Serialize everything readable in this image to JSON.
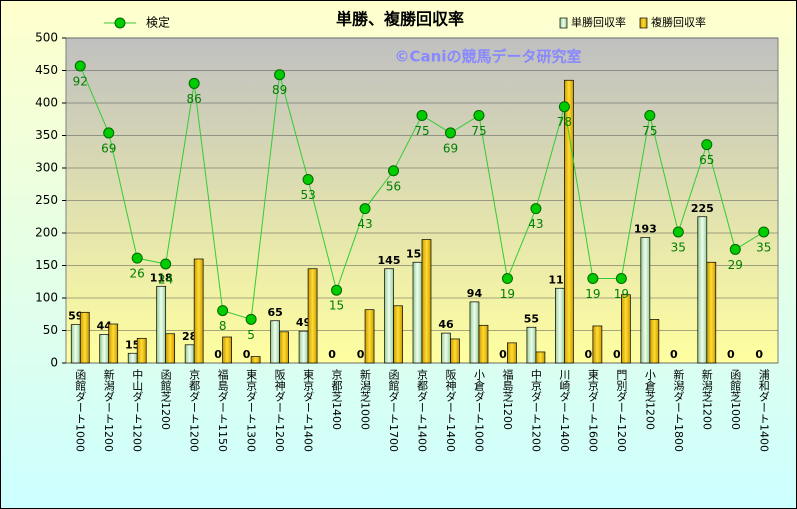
{
  "chart_data": {
    "type": "bar_line",
    "title": "単勝、複勝回収率",
    "annotation": "©Caniの競馬データ研究室",
    "categories": [
      "函館ダート1000",
      "新潟ダート1200",
      "中山ダート1200",
      "函館芝1200",
      "京都ダート1200",
      "福島ダート1150",
      "東京ダート1300",
      "阪神ダート1200",
      "東京ダート1400",
      "京都芝1400",
      "新潟芝1000",
      "函館ダート1700",
      "京都ダート1400",
      "阪神ダート1400",
      "小倉ダート1000",
      "福島芝1200",
      "中京ダート1200",
      "川崎ダート1400",
      "東京ダート1600",
      "門別ダート1200",
      "小倉芝1200",
      "新潟ダート1800",
      "新潟芝1200",
      "函館芝1000",
      "浦和ダート1400"
    ],
    "series": [
      {
        "name": "単勝回収率",
        "type": "bar",
        "color": "#ccffcc",
        "labels": true,
        "values": [
          59,
          44,
          15,
          118,
          28,
          0,
          0,
          65,
          49,
          0,
          0,
          145,
          155,
          46,
          94,
          0,
          55,
          115,
          0,
          0,
          193,
          0,
          225,
          0,
          0
        ]
      },
      {
        "name": "複勝回収率",
        "type": "bar",
        "color": "#ffcc00",
        "labels": false,
        "values": [
          78,
          60,
          38,
          45,
          160,
          40,
          10,
          48,
          145,
          0,
          82,
          88,
          190,
          37,
          58,
          31,
          17,
          435,
          57,
          105,
          67,
          0,
          155,
          0,
          0
        ]
      },
      {
        "name": "検定",
        "type": "line",
        "axis": "y2",
        "color": "#33cc33",
        "labels": true,
        "values": [
          92,
          69,
          26,
          24,
          86,
          8,
          5,
          89,
          53,
          15,
          43,
          56,
          75,
          69,
          75,
          19,
          43,
          78,
          19,
          19,
          75,
          35,
          65,
          29,
          35
        ]
      }
    ],
    "ylim": [
      0,
      500
    ],
    "yticks": [
      0,
      50,
      100,
      150,
      200,
      250,
      300,
      350,
      400,
      450,
      500
    ],
    "y2lim": [
      -10,
      101.6
    ],
    "grid": true
  }
}
